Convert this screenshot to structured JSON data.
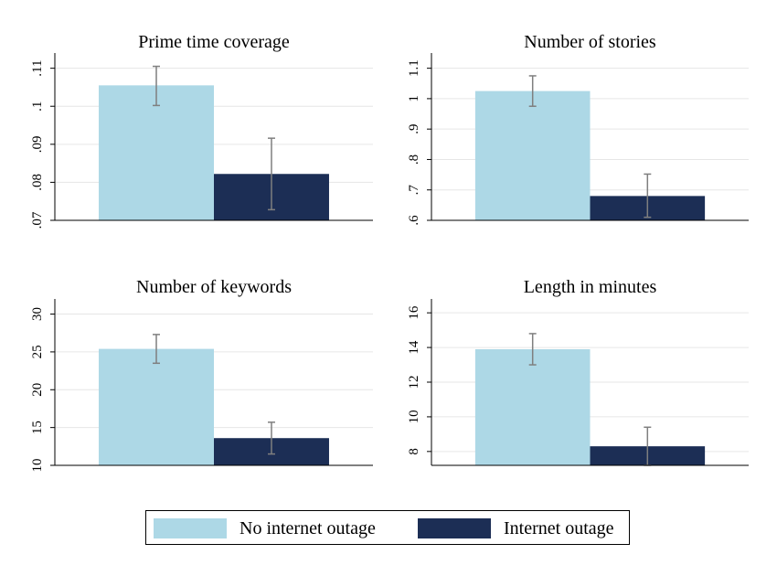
{
  "colors": {
    "no_outage": "#add8e6",
    "outage": "#1c2e55",
    "grid": "#e6e6e6",
    "axis": "#000000",
    "errorbar": "#7f7f7f"
  },
  "legend": {
    "items": [
      {
        "label": "No internet outage",
        "color": "#add8e6"
      },
      {
        "label": "Internet outage",
        "color": "#1c2e55"
      }
    ]
  },
  "chart_data": [
    {
      "type": "bar",
      "title": "Prime time coverage",
      "categories": [
        "No internet outage",
        "Internet outage"
      ],
      "values": [
        0.1055,
        0.0822
      ],
      "error_low": [
        0.1002,
        0.0728
      ],
      "error_high": [
        0.1105,
        0.0916
      ],
      "yticks": [
        0.07,
        0.08,
        0.09,
        0.1,
        0.11
      ],
      "ytick_labels": [
        ".07",
        ".08",
        ".09",
        ".1",
        ".11"
      ],
      "ylim": [
        0.07,
        0.114
      ],
      "grid": true
    },
    {
      "type": "bar",
      "title": "Number of stories",
      "categories": [
        "No internet outage",
        "Internet outage"
      ],
      "values": [
        1.025,
        0.68
      ],
      "error_low": [
        0.975,
        0.61
      ],
      "error_high": [
        1.075,
        0.752
      ],
      "yticks": [
        0.6,
        0.7,
        0.8,
        0.9,
        1.0,
        1.1
      ],
      "ytick_labels": [
        ".6",
        ".7",
        ".8",
        ".9",
        "1",
        "1.1"
      ],
      "ylim": [
        0.6,
        1.15
      ],
      "grid": true
    },
    {
      "type": "bar",
      "title": "Number of keywords",
      "categories": [
        "No internet outage",
        "Internet outage"
      ],
      "values": [
        25.4,
        13.6
      ],
      "error_low": [
        23.5,
        11.5
      ],
      "error_high": [
        27.3,
        15.7
      ],
      "yticks": [
        10,
        15,
        20,
        25,
        30
      ],
      "ytick_labels": [
        "10",
        "15",
        "20",
        "25",
        "30"
      ],
      "ylim": [
        10,
        32
      ],
      "grid": true
    },
    {
      "type": "bar",
      "title": "Length in minutes",
      "categories": [
        "No internet outage",
        "Internet outage"
      ],
      "values": [
        13.9,
        8.3
      ],
      "error_low": [
        13.0,
        7.2
      ],
      "error_high": [
        14.8,
        9.4
      ],
      "yticks": [
        8,
        10,
        12,
        14,
        16
      ],
      "ytick_labels": [
        "8",
        "10",
        "12",
        "14",
        "16"
      ],
      "ylim": [
        7.2,
        16.8
      ],
      "grid": true
    }
  ]
}
